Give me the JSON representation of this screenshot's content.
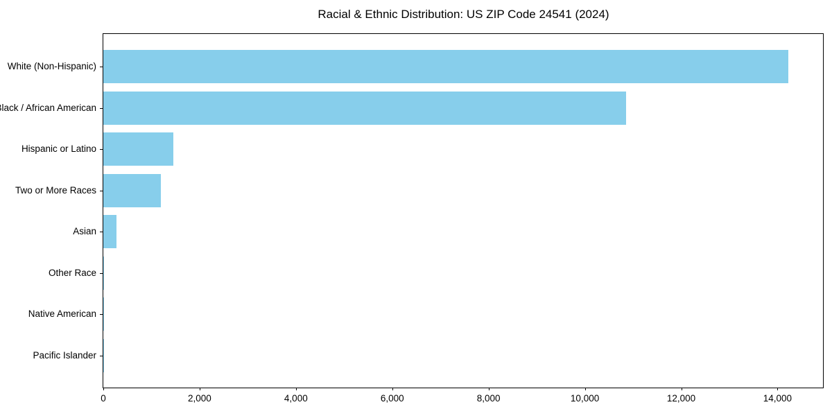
{
  "title": "Racial & Ethnic Distribution: US ZIP Code 24541 (2024)",
  "chart_data": {
    "type": "bar",
    "orientation": "horizontal",
    "title": "Racial & Ethnic Distribution: US ZIP Code 24541 (2024)",
    "xlabel": "",
    "ylabel": "",
    "categories": [
      "White (Non-Hispanic)",
      "Black / African American",
      "Hispanic or Latino",
      "Two or More Races",
      "Asian",
      "Other Race",
      "Native American",
      "Pacific Islander"
    ],
    "values": [
      14230,
      10860,
      1455,
      1200,
      280,
      20,
      10,
      5
    ],
    "xlim": [
      0,
      14944
    ],
    "xticks": [
      0,
      2000,
      4000,
      6000,
      8000,
      10000,
      12000,
      14000
    ],
    "xtick_labels": [
      "0",
      "2,000",
      "4,000",
      "6,000",
      "8,000",
      "10,000",
      "12,000",
      "14,000"
    ],
    "bar_color": "#87CEEB",
    "axis_color": "#000000",
    "background_color": "#ffffff",
    "grid": false,
    "frame": true,
    "legend": null
  }
}
